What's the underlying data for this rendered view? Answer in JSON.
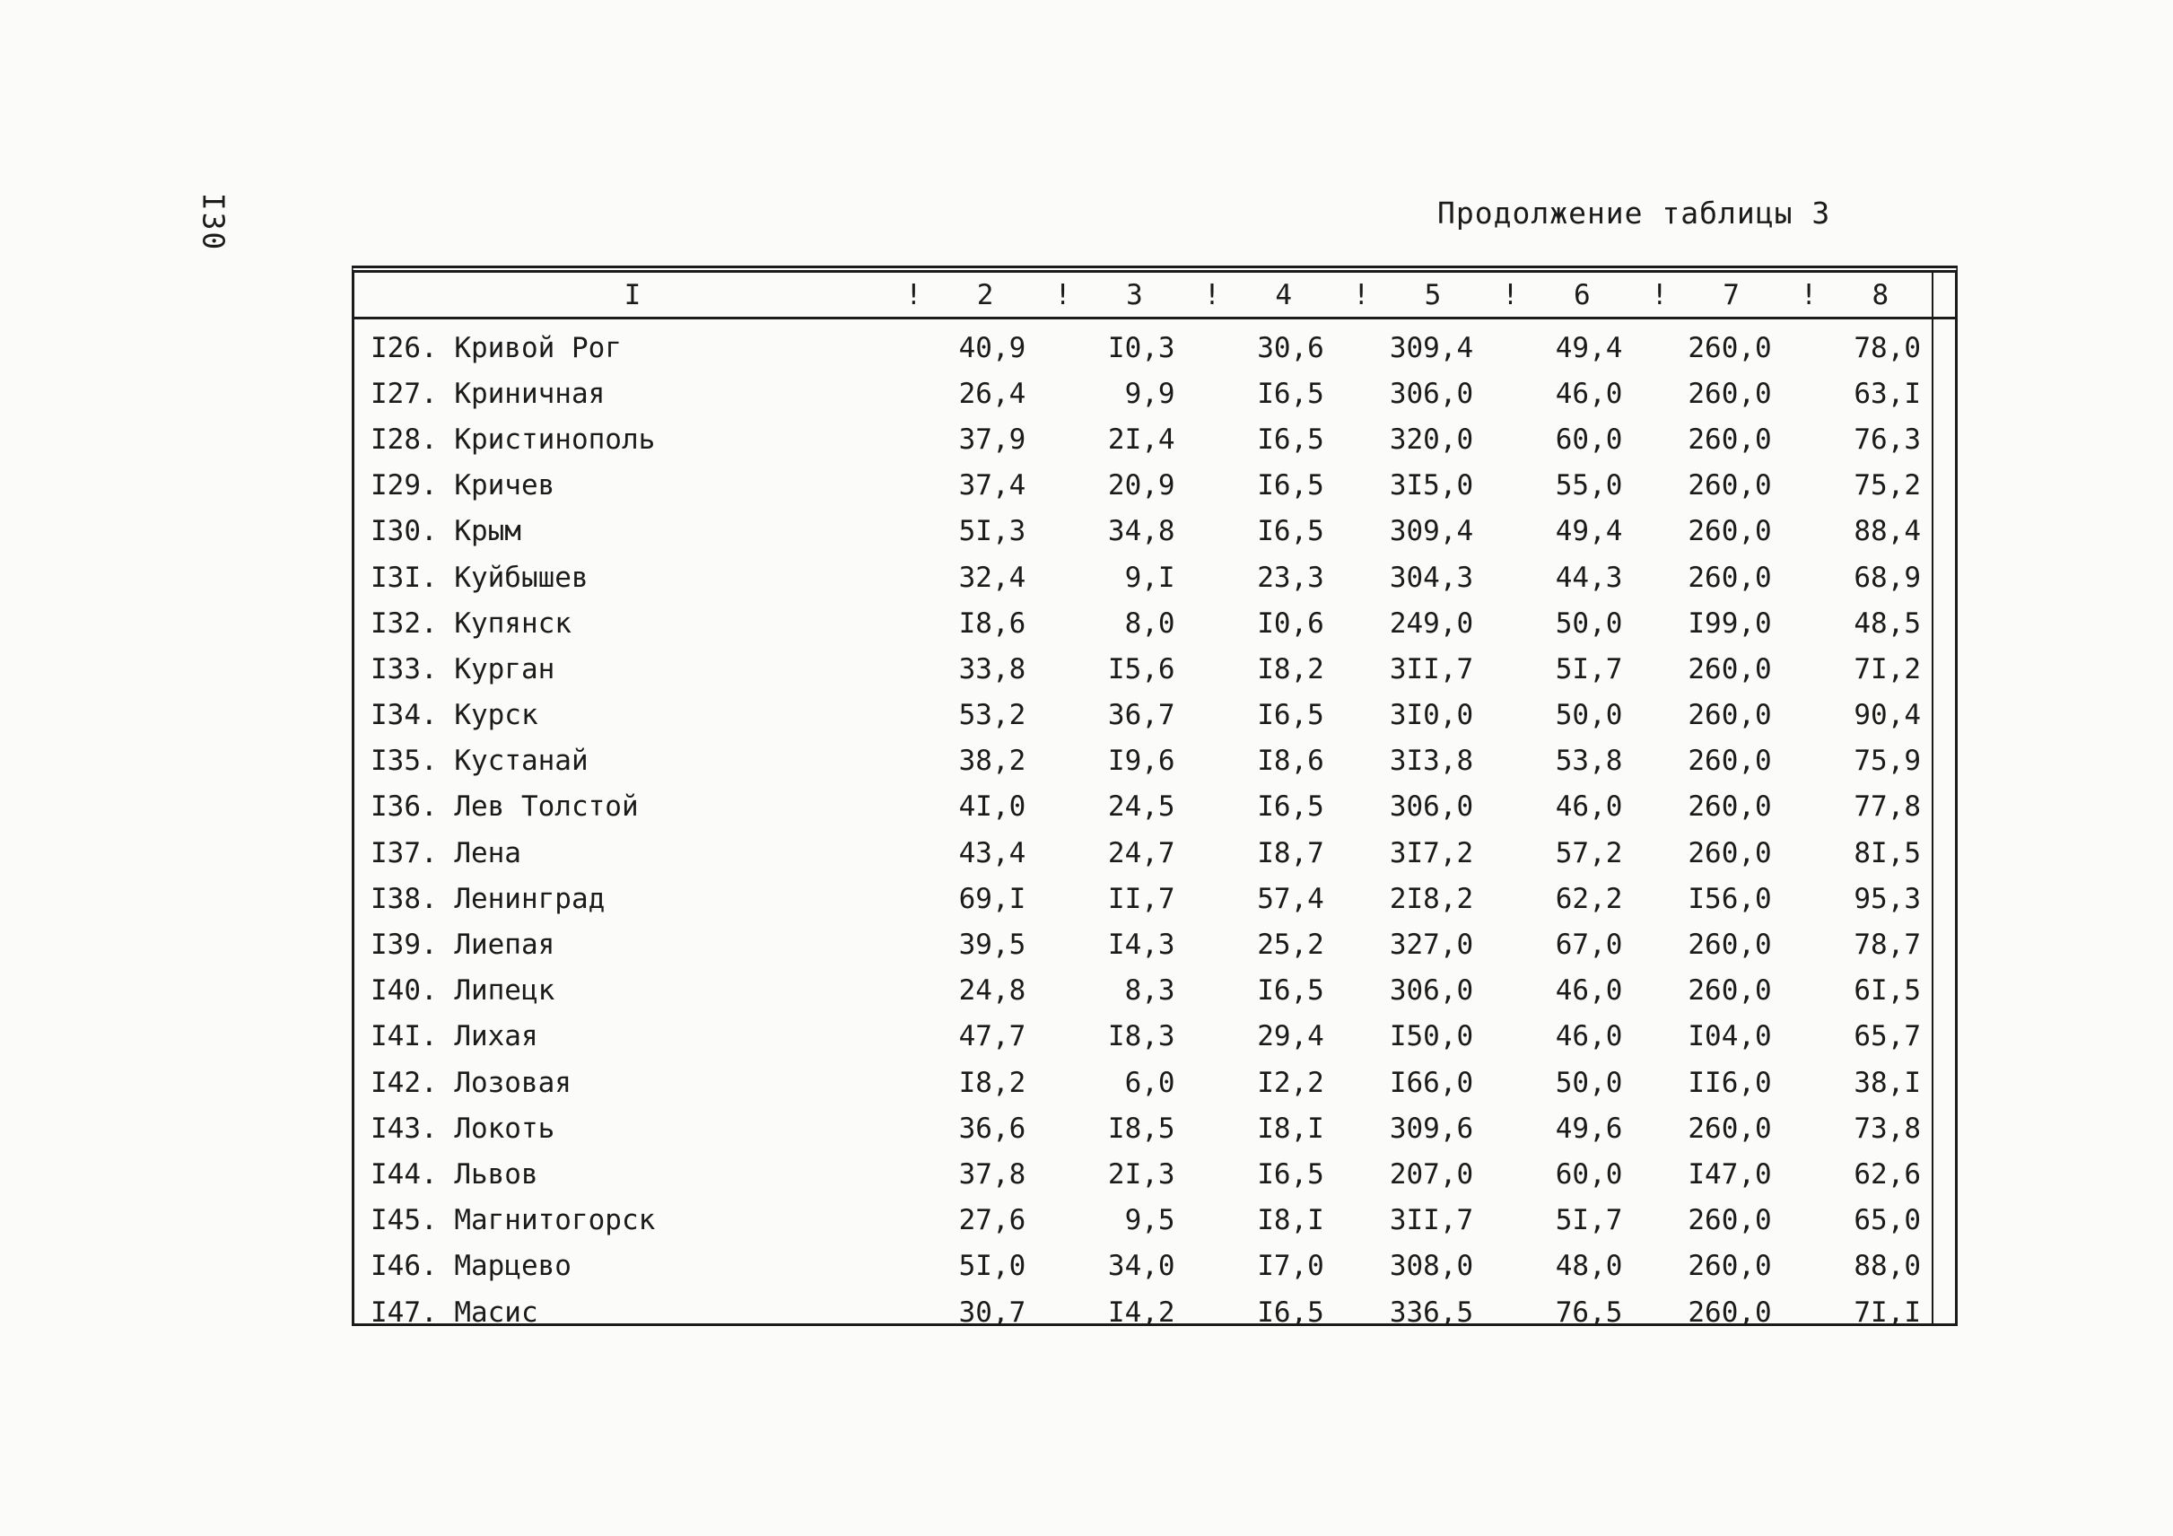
{
  "page": {
    "number": "I30",
    "title": "Продолжение таблицы 3"
  },
  "table": {
    "separator": "!",
    "headers": [
      "I",
      "2",
      "3",
      "4",
      "5",
      "6",
      "7",
      "8"
    ],
    "rows": [
      {
        "name": "I26. Кривой Рог",
        "values": [
          "40,9",
          "I0,3",
          "30,6",
          "309,4",
          "49,4",
          "260,0",
          "78,0"
        ]
      },
      {
        "name": "I27. Криничная",
        "values": [
          "26,4",
          "9,9",
          "I6,5",
          "306,0",
          "46,0",
          "260,0",
          "63,I"
        ]
      },
      {
        "name": "I28. Кристинополь",
        "values": [
          "37,9",
          "2I,4",
          "I6,5",
          "320,0",
          "60,0",
          "260,0",
          "76,3"
        ]
      },
      {
        "name": "I29. Кричев",
        "values": [
          "37,4",
          "20,9",
          "I6,5",
          "3I5,0",
          "55,0",
          "260,0",
          "75,2"
        ]
      },
      {
        "name": "I30. Крым",
        "values": [
          "5I,3",
          "34,8",
          "I6,5",
          "309,4",
          "49,4",
          "260,0",
          "88,4"
        ]
      },
      {
        "name": "I3I. Куйбышев",
        "values": [
          "32,4",
          "9,I",
          "23,3",
          "304,3",
          "44,3",
          "260,0",
          "68,9"
        ]
      },
      {
        "name": "I32. Купянск",
        "values": [
          "I8,6",
          "8,0",
          "I0,6",
          "249,0",
          "50,0",
          "I99,0",
          "48,5"
        ]
      },
      {
        "name": "I33. Курган",
        "values": [
          "33,8",
          "I5,6",
          "I8,2",
          "3II,7",
          "5I,7",
          "260,0",
          "7I,2"
        ]
      },
      {
        "name": "I34. Курск",
        "values": [
          "53,2",
          "36,7",
          "I6,5",
          "3I0,0",
          "50,0",
          "260,0",
          "90,4"
        ]
      },
      {
        "name": "I35. Кустанай",
        "values": [
          "38,2",
          "I9,6",
          "I8,6",
          "3I3,8",
          "53,8",
          "260,0",
          "75,9"
        ]
      },
      {
        "name": "I36. Лев Толстой",
        "values": [
          "4I,0",
          "24,5",
          "I6,5",
          "306,0",
          "46,0",
          "260,0",
          "77,8"
        ]
      },
      {
        "name": "I37. Лена",
        "values": [
          "43,4",
          "24,7",
          "I8,7",
          "3I7,2",
          "57,2",
          "260,0",
          "8I,5"
        ]
      },
      {
        "name": "I38. Ленинград",
        "values": [
          "69,I",
          "II,7",
          "57,4",
          "2I8,2",
          "62,2",
          "I56,0",
          "95,3"
        ]
      },
      {
        "name": "I39. Лиепая",
        "values": [
          "39,5",
          "I4,3",
          "25,2",
          "327,0",
          "67,0",
          "260,0",
          "78,7"
        ]
      },
      {
        "name": "I40. Липецк",
        "values": [
          "24,8",
          "8,3",
          "I6,5",
          "306,0",
          "46,0",
          "260,0",
          "6I,5"
        ]
      },
      {
        "name": "I4I. Лихая",
        "values": [
          "47,7",
          "I8,3",
          "29,4",
          "I50,0",
          "46,0",
          "I04,0",
          "65,7"
        ]
      },
      {
        "name": "I42. Лозовая",
        "values": [
          "I8,2",
          "6,0",
          "I2,2",
          "I66,0",
          "50,0",
          "II6,0",
          "38,I"
        ]
      },
      {
        "name": "I43. Локоть",
        "values": [
          "36,6",
          "I8,5",
          "I8,I",
          "309,6",
          "49,6",
          "260,0",
          "73,8"
        ]
      },
      {
        "name": "I44. Львов",
        "values": [
          "37,8",
          "2I,3",
          "I6,5",
          "207,0",
          "60,0",
          "I47,0",
          "62,6"
        ]
      },
      {
        "name": "I45. Магнитогорск",
        "values": [
          "27,6",
          "9,5",
          "I8,I",
          "3II,7",
          "5I,7",
          "260,0",
          "65,0"
        ]
      },
      {
        "name": "I46. Марцево",
        "values": [
          "5I,0",
          "34,0",
          "I7,0",
          "308,0",
          "48,0",
          "260,0",
          "88,0"
        ]
      },
      {
        "name": "I47. Масис",
        "values": [
          "30,7",
          "I4,2",
          "I6,5",
          "336,5",
          "76,5",
          "260,0",
          "7I,I"
        ]
      }
    ]
  }
}
